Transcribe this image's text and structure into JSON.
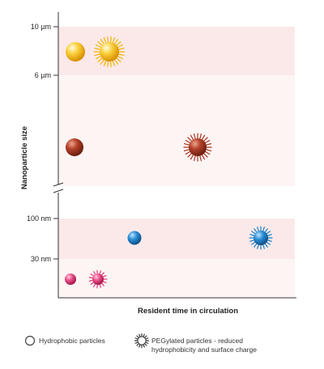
{
  "colors": {
    "band_dark": "#fbe9e9",
    "band_light": "#fdf5f4",
    "axis": "#333333",
    "yellow": "#f5b400",
    "brown": "#a8321e",
    "blue": "#1f7fc4",
    "pink": "#e63d7a"
  },
  "diagram": {
    "y_ticks": [
      {
        "label": "10 µm"
      },
      {
        "label": "6 µm"
      },
      {
        "label": "100 nm"
      },
      {
        "label": "30 nm"
      }
    ],
    "y_axis_label": "Nanoparticle size",
    "x_axis_label": "Resident time in circulation",
    "particles": [
      {
        "name": "yellow-hydrophobic-particle",
        "color_key": "yellow",
        "type": "hydrophobic"
      },
      {
        "name": "yellow-pegylated-particle",
        "color_key": "yellow",
        "type": "pegylated"
      },
      {
        "name": "brown-hydrophobic-particle",
        "color_key": "brown",
        "type": "hydrophobic"
      },
      {
        "name": "brown-pegylated-particle",
        "color_key": "brown",
        "type": "pegylated"
      },
      {
        "name": "blue-hydrophobic-particle",
        "color_key": "blue",
        "type": "hydrophobic"
      },
      {
        "name": "blue-pegylated-particle",
        "color_key": "blue",
        "type": "pegylated"
      },
      {
        "name": "pink-hydrophobic-particle",
        "color_key": "pink",
        "type": "hydrophobic"
      },
      {
        "name": "pink-pegylated-particle",
        "color_key": "pink",
        "type": "pegylated"
      }
    ]
  },
  "legend": {
    "hydrophobic_label": "Hydrophobic particles",
    "pegylated_label": "PEGylated particles - reduced hydrophobicity and surface charge"
  }
}
